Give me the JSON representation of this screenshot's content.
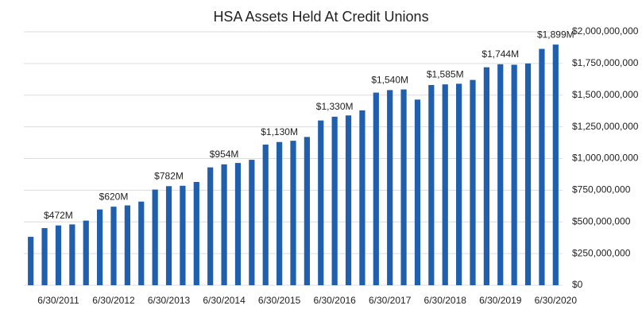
{
  "chart_data": {
    "type": "bar",
    "title": "HSA Assets Held At Credit Unions",
    "categories": [
      null,
      null,
      "6/30/2011",
      null,
      null,
      null,
      "6/30/2012",
      null,
      null,
      null,
      "6/30/2013",
      null,
      null,
      null,
      "6/30/2014",
      null,
      null,
      null,
      "6/30/2015",
      null,
      null,
      null,
      "6/30/2016",
      null,
      null,
      null,
      "6/30/2017",
      null,
      null,
      null,
      "6/30/2018",
      null,
      null,
      null,
      "6/30/2019",
      null,
      null,
      null,
      "6/30/2020"
    ],
    "values": [
      382000000,
      451000000,
      472000000,
      480000000,
      510000000,
      598000000,
      620000000,
      630000000,
      660000000,
      755000000,
      782000000,
      785000000,
      815000000,
      930000000,
      954000000,
      965000000,
      990000000,
      1110000000,
      1130000000,
      1140000000,
      1170000000,
      1300000000,
      1330000000,
      1340000000,
      1380000000,
      1520000000,
      1540000000,
      1545000000,
      1465000000,
      1580000000,
      1585000000,
      1590000000,
      1620000000,
      1720000000,
      1744000000,
      1740000000,
      1750000000,
      1865000000,
      1899000000
    ],
    "value_labels": [
      null,
      null,
      "$472M",
      null,
      null,
      null,
      "$620M",
      null,
      null,
      null,
      "$782M",
      null,
      null,
      null,
      "$954M",
      null,
      null,
      null,
      "$1,130M",
      null,
      null,
      null,
      "$1,330M",
      null,
      null,
      null,
      "$1,540M",
      null,
      null,
      null,
      "$1,585M",
      null,
      null,
      null,
      "$1,744M",
      null,
      null,
      null,
      "$1,899M"
    ],
    "color": "#1f5fad",
    "ylim": [
      0,
      2000000000
    ],
    "yticks": [
      {
        "value": 0,
        "label": "$0"
      },
      {
        "value": 250000000,
        "label": "$250,000,000"
      },
      {
        "value": 500000000,
        "label": "$500,000,000"
      },
      {
        "value": 750000000,
        "label": "$750,000,000"
      },
      {
        "value": 1000000000,
        "label": "$1,000,000,000"
      },
      {
        "value": 1250000000,
        "label": "$1,250,000,000"
      },
      {
        "value": 1500000000,
        "label": "$1,500,000,000"
      },
      {
        "value": 1750000000,
        "label": "$1,750,000,000"
      },
      {
        "value": 2000000000,
        "label": "$2,000,000,000"
      }
    ],
    "y_axis_side": "right",
    "grid": true
  }
}
